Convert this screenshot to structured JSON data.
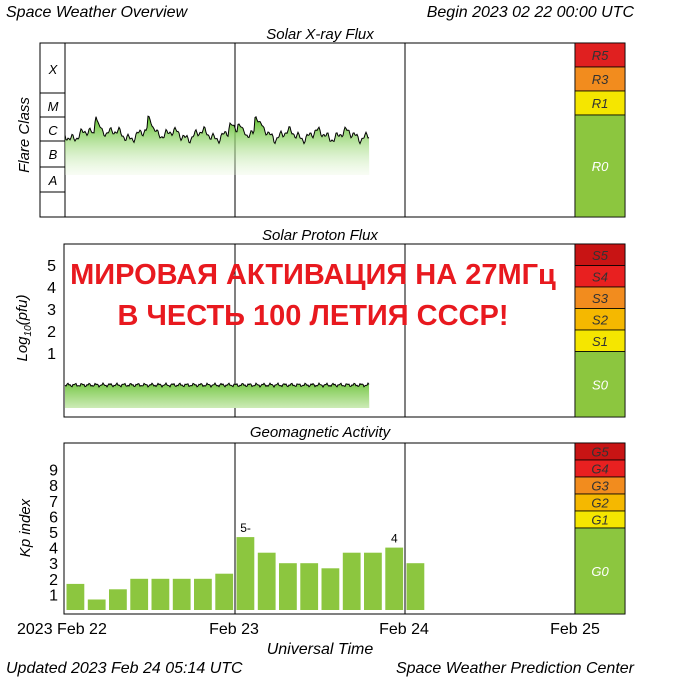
{
  "header": {
    "title": "Space Weather Overview",
    "begin": "Begin 2023 02 22 00:00 UTC"
  },
  "footer": {
    "updated": "Updated 2023 Feb 24 05:14 UTC",
    "center": "Space Weather Prediction Center"
  },
  "banner": {
    "line1": "МИРОВАЯ АКТИВАЦИЯ НА 27МГц",
    "line2": "В ЧЕСТЬ 100 ЛЕТИЯ СССР!",
    "color": "#e8191f"
  },
  "x_axis": {
    "label": "Universal Time",
    "tick_labels": [
      "2023 Feb 22",
      "Feb 23",
      "Feb 24",
      "Feb 25"
    ]
  },
  "chart_data": [
    {
      "type": "area",
      "title": "Solar X-ray Flux",
      "ylabel": "Flare Class",
      "categories": [
        "X",
        "M",
        "C",
        "B",
        "A"
      ],
      "x_range_days": [
        0,
        3
      ],
      "data_end_day": 1.79,
      "background_level": "C",
      "peaks": [
        {
          "day": 0.18,
          "level": "M"
        },
        {
          "day": 0.49,
          "level": "M"
        },
        {
          "day": 0.97,
          "level": "C"
        },
        {
          "day": 1.02,
          "level": "C"
        },
        {
          "day": 1.12,
          "level": "M"
        }
      ],
      "scale": [
        {
          "label": "R5",
          "color": "#e02020"
        },
        {
          "label": "R3",
          "color": "#f28c1e"
        },
        {
          "label": "R1",
          "color": "#f5e600"
        },
        {
          "label": "R0",
          "color": "#8cc63f"
        }
      ]
    },
    {
      "type": "area",
      "title": "Solar Proton Flux",
      "ylabel": "Log10(pfu)",
      "y_ticks": [
        5,
        4,
        3,
        2,
        1
      ],
      "x_range_days": [
        0,
        3
      ],
      "data_end_day": 1.79,
      "level": "below 1",
      "scale": [
        {
          "label": "S5",
          "color": "#c81414"
        },
        {
          "label": "S4",
          "color": "#e82020"
        },
        {
          "label": "S3",
          "color": "#f28c1e"
        },
        {
          "label": "S2",
          "color": "#f5b800"
        },
        {
          "label": "S1",
          "color": "#f5e600"
        },
        {
          "label": "S0",
          "color": "#8cc63f"
        }
      ]
    },
    {
      "type": "bar",
      "title": "Geomagnetic Activity",
      "ylabel": "Kp index",
      "y_ticks": [
        9,
        8,
        7,
        6,
        5,
        4,
        3,
        2,
        1
      ],
      "ylim": [
        0,
        9
      ],
      "x_range_days": [
        0,
        3
      ],
      "bar_color": "#8cc63f",
      "values": [
        1.67,
        0.67,
        1.33,
        2.0,
        2.0,
        2.0,
        2.0,
        2.33,
        4.67,
        3.67,
        3.0,
        3.0,
        2.67,
        3.67,
        3.67,
        4.0,
        3.0
      ],
      "annotations": [
        {
          "index": 8,
          "text": "5-"
        },
        {
          "index": 15,
          "text": "4"
        }
      ],
      "scale": [
        {
          "label": "G5",
          "color": "#c81414"
        },
        {
          "label": "G4",
          "color": "#e82020"
        },
        {
          "label": "G3",
          "color": "#f28c1e"
        },
        {
          "label": "G2",
          "color": "#f5b800"
        },
        {
          "label": "G1",
          "color": "#f5e600"
        },
        {
          "label": "G0",
          "color": "#8cc63f"
        }
      ]
    }
  ]
}
